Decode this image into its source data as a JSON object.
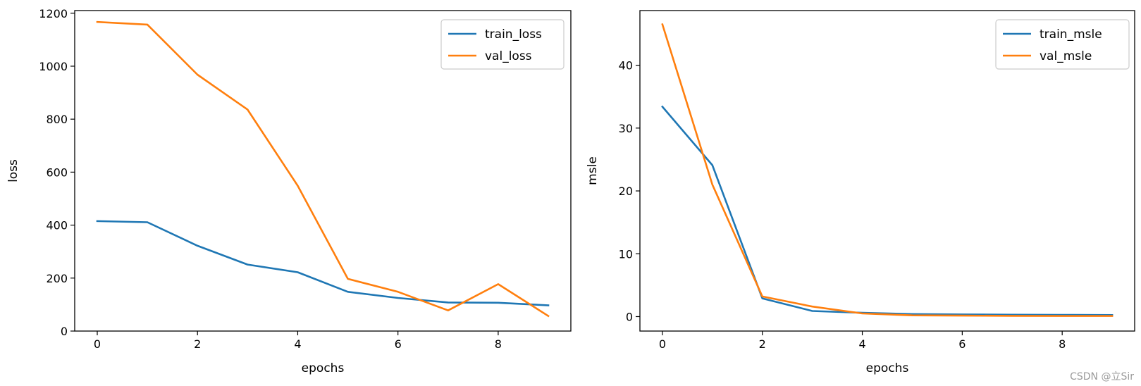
{
  "chart_data": [
    {
      "type": "line",
      "xlabel": "epochs",
      "ylabel": "loss",
      "x": [
        0,
        1,
        2,
        3,
        4,
        5,
        6,
        7,
        8,
        9
      ],
      "xlim": [
        -0.45,
        9.45
      ],
      "ylim": [
        0,
        1210
      ],
      "xticks": [
        0,
        2,
        4,
        6,
        8
      ],
      "yticks": [
        0,
        200,
        400,
        600,
        800,
        1000,
        1200
      ],
      "grid": false,
      "legend_position": "top-right",
      "series": [
        {
          "name": "train_loss",
          "color": "#1f77b4",
          "values": [
            415,
            411,
            322,
            251,
            222,
            148,
            125,
            108,
            107,
            97
          ]
        },
        {
          "name": "val_loss",
          "color": "#ff7f0e",
          "values": [
            1167,
            1157,
            968,
            836,
            549,
            197,
            148,
            78,
            177,
            57
          ]
        }
      ]
    },
    {
      "type": "line",
      "xlabel": "epochs",
      "ylabel": "msle",
      "x": [
        0,
        1,
        2,
        3,
        4,
        5,
        6,
        7,
        8,
        9
      ],
      "xlim": [
        -0.45,
        9.45
      ],
      "ylim": [
        -2.3,
        48.7
      ],
      "xticks": [
        0,
        2,
        4,
        6,
        8
      ],
      "yticks": [
        0,
        10,
        20,
        30,
        40
      ],
      "grid": false,
      "legend_position": "top-right",
      "series": [
        {
          "name": "train_msle",
          "color": "#1f77b4",
          "values": [
            33.4,
            24.1,
            2.9,
            0.9,
            0.6,
            0.4,
            0.35,
            0.3,
            0.28,
            0.25
          ]
        },
        {
          "name": "val_msle",
          "color": "#ff7f0e",
          "values": [
            46.5,
            21.0,
            3.2,
            1.6,
            0.5,
            0.2,
            0.15,
            0.12,
            0.1,
            0.1
          ]
        }
      ]
    }
  ],
  "watermark": "CSDN @立Sir"
}
